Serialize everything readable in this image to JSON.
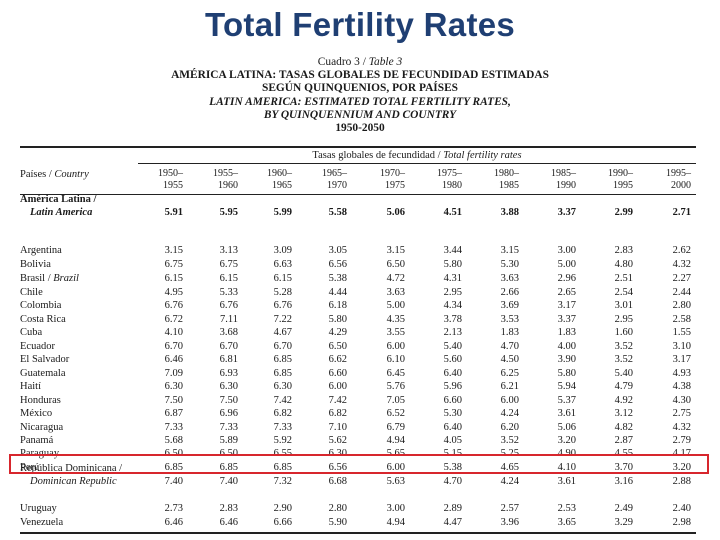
{
  "slide": {
    "title": "Total Fertility Rates"
  },
  "caption": {
    "table_number": "Cuadro 3 / ",
    "table_number_en": "Table 3",
    "title_es_1": "AMÉRICA LATINA: TASAS GLOBALES DE FECUNDIDAD ESTIMADAS",
    "title_es_2": "SEGÚN QUINQUENIOS, POR PAÍSES",
    "title_en_1": "LATIN AMERICA: ESTIMATED TOTAL FERTILITY RATES,",
    "title_en_2": "BY QUINQUENNIUM AND COUNTRY",
    "years": "1950-2050"
  },
  "table": {
    "country_header_es": "Países / ",
    "country_header_en": "Country",
    "span_header_es": "Tasas globales de fecundidad / ",
    "span_header_en": "Total fertility rates",
    "periods": [
      [
        "1950–",
        "1955"
      ],
      [
        "1955–",
        "1960"
      ],
      [
        "1960–",
        "1965"
      ],
      [
        "1965–",
        "1970"
      ],
      [
        "1970–",
        "1975"
      ],
      [
        "1975–",
        "1980"
      ],
      [
        "1980–",
        "1985"
      ],
      [
        "1985–",
        "1990"
      ],
      [
        "1990–",
        "1995"
      ],
      [
        "1995–",
        "2000"
      ]
    ],
    "rows": [
      {
        "name_es": "América Latina / ",
        "name_en": "Latin America",
        "two_line": true,
        "bold": true,
        "values": [
          "5.91",
          "5.95",
          "5.99",
          "5.58",
          "5.06",
          "4.51",
          "3.88",
          "3.37",
          "2.99",
          "2.71"
        ]
      },
      {
        "name_es": "Argentina",
        "values": [
          "3.15",
          "3.13",
          "3.09",
          "3.05",
          "3.15",
          "3.44",
          "3.15",
          "3.00",
          "2.83",
          "2.62"
        ]
      },
      {
        "name_es": "Bolivia",
        "values": [
          "6.75",
          "6.75",
          "6.63",
          "6.56",
          "6.50",
          "5.80",
          "5.30",
          "5.00",
          "4.80",
          "4.32"
        ]
      },
      {
        "name_es": "Brasil / ",
        "name_en": "Brazil",
        "values": [
          "6.15",
          "6.15",
          "6.15",
          "5.38",
          "4.72",
          "4.31",
          "3.63",
          "2.96",
          "2.51",
          "2.27"
        ]
      },
      {
        "name_es": "Chile",
        "values": [
          "4.95",
          "5.33",
          "5.28",
          "4.44",
          "3.63",
          "2.95",
          "2.66",
          "2.65",
          "2.54",
          "2.44"
        ]
      },
      {
        "name_es": "Colombia",
        "values": [
          "6.76",
          "6.76",
          "6.76",
          "6.18",
          "5.00",
          "4.34",
          "3.69",
          "3.17",
          "3.01",
          "2.80"
        ]
      },
      {
        "name_es": "Costa Rica",
        "values": [
          "6.72",
          "7.11",
          "7.22",
          "5.80",
          "4.35",
          "3.78",
          "3.53",
          "3.37",
          "2.95",
          "2.58"
        ]
      },
      {
        "name_es": "Cuba",
        "values": [
          "4.10",
          "3.68",
          "4.67",
          "4.29",
          "3.55",
          "2.13",
          "1.83",
          "1.83",
          "1.60",
          "1.55"
        ]
      },
      {
        "name_es": "Ecuador",
        "values": [
          "6.70",
          "6.70",
          "6.70",
          "6.50",
          "6.00",
          "5.40",
          "4.70",
          "4.00",
          "3.52",
          "3.10"
        ]
      },
      {
        "name_es": "El Salvador",
        "values": [
          "6.46",
          "6.81",
          "6.85",
          "6.62",
          "6.10",
          "5.60",
          "4.50",
          "3.90",
          "3.52",
          "3.17"
        ]
      },
      {
        "name_es": "Guatemala",
        "values": [
          "7.09",
          "6.93",
          "6.85",
          "6.60",
          "6.45",
          "6.40",
          "6.25",
          "5.80",
          "5.40",
          "4.93"
        ]
      },
      {
        "name_es": "Haití",
        "values": [
          "6.30",
          "6.30",
          "6.30",
          "6.00",
          "5.76",
          "5.96",
          "6.21",
          "5.94",
          "4.79",
          "4.38"
        ]
      },
      {
        "name_es": "Honduras",
        "values": [
          "7.50",
          "7.50",
          "7.42",
          "7.42",
          "7.05",
          "6.60",
          "6.00",
          "5.37",
          "4.92",
          "4.30"
        ]
      },
      {
        "name_es": "México",
        "values": [
          "6.87",
          "6.96",
          "6.82",
          "6.82",
          "6.52",
          "5.30",
          "4.24",
          "3.61",
          "3.12",
          "2.75"
        ]
      },
      {
        "name_es": "Nicaragua",
        "values": [
          "7.33",
          "7.33",
          "7.33",
          "7.10",
          "6.79",
          "6.40",
          "6.20",
          "5.06",
          "4.82",
          "4.32"
        ]
      },
      {
        "name_es": "Panamá",
        "values": [
          "5.68",
          "5.89",
          "5.92",
          "5.62",
          "4.94",
          "4.05",
          "3.52",
          "3.20",
          "2.87",
          "2.79"
        ]
      },
      {
        "name_es": "Paraguay",
        "values": [
          "6.50",
          "6.50",
          "6.55",
          "6.30",
          "5.65",
          "5.15",
          "5.25",
          "4.90",
          "4.55",
          "4.17"
        ]
      },
      {
        "name_es": "Perú",
        "highlighted": true,
        "values": [
          "6.85",
          "6.85",
          "6.85",
          "6.56",
          "6.00",
          "5.38",
          "4.65",
          "4.10",
          "3.70",
          "3.20"
        ]
      },
      {
        "name_es": "República Dominicana / ",
        "name_en": "Dominican Republic",
        "two_line": true,
        "values": [
          "7.40",
          "7.40",
          "7.32",
          "6.68",
          "5.63",
          "4.70",
          "4.24",
          "3.61",
          "3.16",
          "2.88"
        ]
      },
      {
        "name_es": "Uruguay",
        "values": [
          "2.73",
          "2.83",
          "2.90",
          "2.80",
          "3.00",
          "2.89",
          "2.57",
          "2.53",
          "2.49",
          "2.40"
        ]
      },
      {
        "name_es": "Venezuela",
        "values": [
          "6.46",
          "6.46",
          "6.66",
          "5.90",
          "4.94",
          "4.47",
          "3.96",
          "3.65",
          "3.29",
          "2.98"
        ]
      }
    ]
  },
  "colors": {
    "title": "#1f3f73",
    "highlight_border": "#d7262d",
    "text": "#1a1a1a"
  }
}
